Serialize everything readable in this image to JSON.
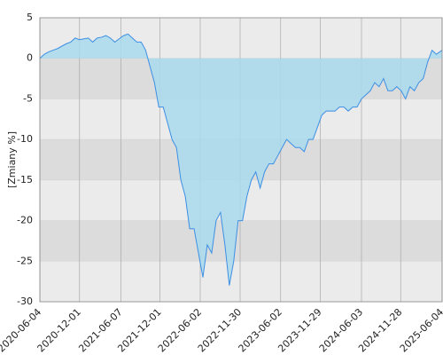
{
  "chart_data": {
    "type": "area",
    "y_label": "[Zmiany %]",
    "x": [
      "2020-06-04",
      "2020-06-24",
      "2020-07-14",
      "2020-08-03",
      "2020-08-23",
      "2020-09-12",
      "2020-10-02",
      "2020-10-22",
      "2020-11-11",
      "2020-12-01",
      "2020-12-21",
      "2021-01-10",
      "2021-01-30",
      "2021-02-19",
      "2021-03-11",
      "2021-03-31",
      "2021-04-20",
      "2021-05-10",
      "2021-05-30",
      "2021-06-19",
      "2021-07-09",
      "2021-07-29",
      "2021-08-18",
      "2021-09-07",
      "2021-09-27",
      "2021-10-17",
      "2021-11-06",
      "2021-11-26",
      "2021-12-16",
      "2022-01-05",
      "2022-01-25",
      "2022-02-14",
      "2022-03-06",
      "2022-03-26",
      "2022-04-15",
      "2022-05-05",
      "2022-05-25",
      "2022-06-14",
      "2022-07-04",
      "2022-07-24",
      "2022-08-13",
      "2022-09-02",
      "2022-09-22",
      "2022-10-12",
      "2022-11-01",
      "2022-11-21",
      "2022-12-11",
      "2022-12-31",
      "2023-01-20",
      "2023-02-09",
      "2023-03-01",
      "2023-03-21",
      "2023-04-10",
      "2023-04-30",
      "2023-05-20",
      "2023-06-09",
      "2023-06-29",
      "2023-07-19",
      "2023-08-08",
      "2023-08-28",
      "2023-09-17",
      "2023-10-07",
      "2023-10-27",
      "2023-11-16",
      "2023-12-06",
      "2023-12-26",
      "2024-01-15",
      "2024-02-04",
      "2024-02-24",
      "2024-03-15",
      "2024-04-04",
      "2024-04-24",
      "2024-05-14",
      "2024-06-03",
      "2024-06-23",
      "2024-07-13",
      "2024-08-02",
      "2024-08-22",
      "2024-09-11",
      "2024-10-01",
      "2024-10-21",
      "2024-11-10",
      "2024-11-30",
      "2024-12-20",
      "2025-01-09",
      "2025-01-29",
      "2025-02-18",
      "2025-03-10",
      "2025-03-30",
      "2025-04-19",
      "2025-05-09",
      "2025-06-04"
    ],
    "series": [
      {
        "color": "#3d8fe3",
        "fill": "#a9d9ec",
        "values": [
          0,
          0.5,
          0.8,
          1,
          1.2,
          1.5,
          1.8,
          2,
          2.5,
          2.3,
          2.4,
          2.5,
          2,
          2.5,
          2.6,
          2.8,
          2.5,
          2,
          2.4,
          2.8,
          3,
          2.5,
          2,
          2,
          1,
          -1,
          -3,
          -6,
          -6,
          -8,
          -10,
          -11,
          -15,
          -17,
          -21,
          -21,
          -24,
          -27,
          -23,
          -24,
          -20,
          -19,
          -23,
          -28,
          -25,
          -20,
          -20,
          -17,
          -15,
          -14,
          -16,
          -14,
          -13,
          -13,
          -12,
          -11,
          -10,
          -10.5,
          -11,
          -11,
          -11.5,
          -10,
          -10,
          -8.5,
          -7,
          -6.5,
          -6.5,
          -6.5,
          -6,
          -6,
          -6.5,
          -6,
          -6,
          -5,
          -4.5,
          -4,
          -3,
          -3.5,
          -2.5,
          -4,
          -4,
          -3.5,
          -4,
          -5,
          -3.5,
          -4,
          -3,
          -2.5,
          -0.5,
          1,
          0.5,
          1
        ]
      }
    ],
    "xlim": [
      "2020-06-04",
      "2025-06-04"
    ],
    "xticks": [
      "2020-06-04",
      "2020-12-01",
      "2021-06-07",
      "2021-12-01",
      "2022-06-02",
      "2022-11-30",
      "2023-06-02",
      "2023-11-29",
      "2024-06-03",
      "2024-11-28",
      "2025-06-04"
    ],
    "ylim": [
      -30,
      5
    ],
    "yticks": [
      5,
      0,
      -5,
      -10,
      -15,
      -20,
      -25,
      -30
    ],
    "grid": true
  }
}
